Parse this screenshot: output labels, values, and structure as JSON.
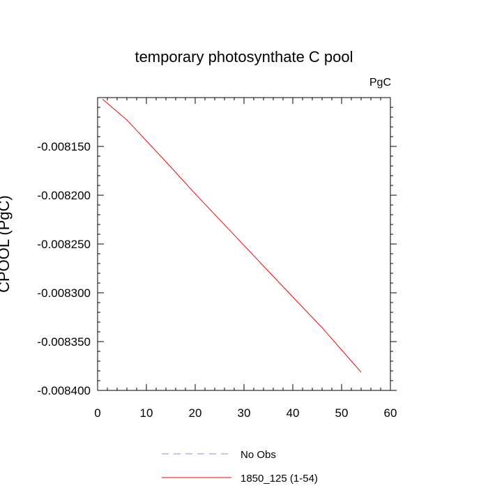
{
  "chart_data": {
    "type": "line",
    "title": "temporary photosynthate C pool",
    "units_label": "PgC",
    "ylabel": "CPOOL  (PgC)",
    "xlabel": "",
    "xlim": [
      0,
      60
    ],
    "ylim": [
      -0.0084,
      -0.0081
    ],
    "x_ticks": [
      0,
      10,
      20,
      30,
      40,
      50,
      60
    ],
    "x_tick_labels": [
      "0",
      "10",
      "20",
      "30",
      "40",
      "50",
      "60"
    ],
    "y_ticks": [
      -0.00815,
      -0.0082,
      -0.00825,
      -0.0083,
      -0.00835,
      -0.0084
    ],
    "y_tick_labels": [
      "-0.008150",
      "-0.008200",
      "-0.008250",
      "-0.008300",
      "-0.008350",
      "-0.008400"
    ],
    "grid": false,
    "legend_position": "bottom",
    "series": [
      {
        "name": "No Obs",
        "color": "#8c8cf0",
        "dash": "dashed",
        "x": [],
        "y": []
      },
      {
        "name": "1850_125 (1-54)",
        "color": "#ff0000",
        "dash": "solid",
        "x": [
          1,
          6,
          14,
          20,
          30,
          40,
          46,
          54
        ],
        "y": [
          -0.0081015,
          -0.0081229,
          -0.0081657,
          -0.0081986,
          -0.0082514,
          -0.0083043,
          -0.0083357,
          -0.0083814
        ]
      }
    ]
  }
}
